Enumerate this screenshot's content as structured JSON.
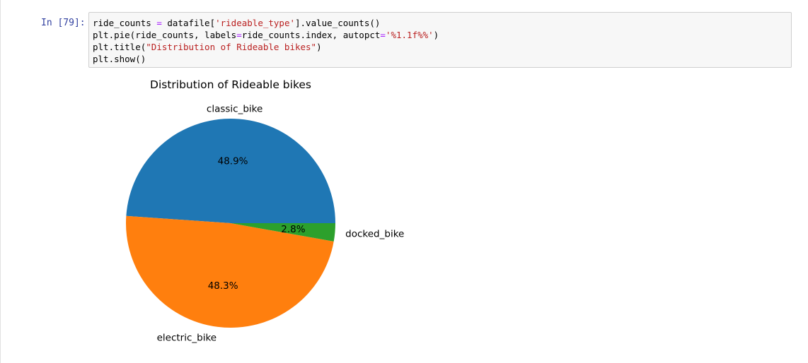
{
  "cell": {
    "prompt": "In [79]:",
    "code_lines": [
      [
        {
          "t": "ride_counts ",
          "c": ""
        },
        {
          "t": "=",
          "c": "op"
        },
        {
          "t": " datafile[",
          "c": ""
        },
        {
          "t": "'rideable_type'",
          "c": "str"
        },
        {
          "t": "].value_counts()",
          "c": ""
        }
      ],
      [
        {
          "t": "plt.pie(ride_counts, labels",
          "c": ""
        },
        {
          "t": "=",
          "c": "op"
        },
        {
          "t": "ride_counts.index, autopct",
          "c": ""
        },
        {
          "t": "=",
          "c": "op"
        },
        {
          "t": "'%1.1f%%'",
          "c": "str"
        },
        {
          "t": ")",
          "c": ""
        }
      ],
      [
        {
          "t": "plt.title(",
          "c": ""
        },
        {
          "t": "\"Distribution of Rideable bikes\"",
          "c": "str"
        },
        {
          "t": ")",
          "c": ""
        }
      ],
      [
        {
          "t": "plt.show()",
          "c": ""
        }
      ]
    ]
  },
  "chart_data": {
    "type": "pie",
    "title": "Distribution of Rideable bikes",
    "start_angle_deg": 0,
    "direction": "counterclockwise",
    "slices": [
      {
        "label": "classic_bike",
        "pct": 48.9,
        "pct_label": "48.9%",
        "color": "#1f77b4"
      },
      {
        "label": "electric_bike",
        "pct": 48.3,
        "pct_label": "48.3%",
        "color": "#ff7f0e"
      },
      {
        "label": "docked_bike",
        "pct": 2.8,
        "pct_label": "2.8%",
        "color": "#2ca02c"
      }
    ]
  }
}
